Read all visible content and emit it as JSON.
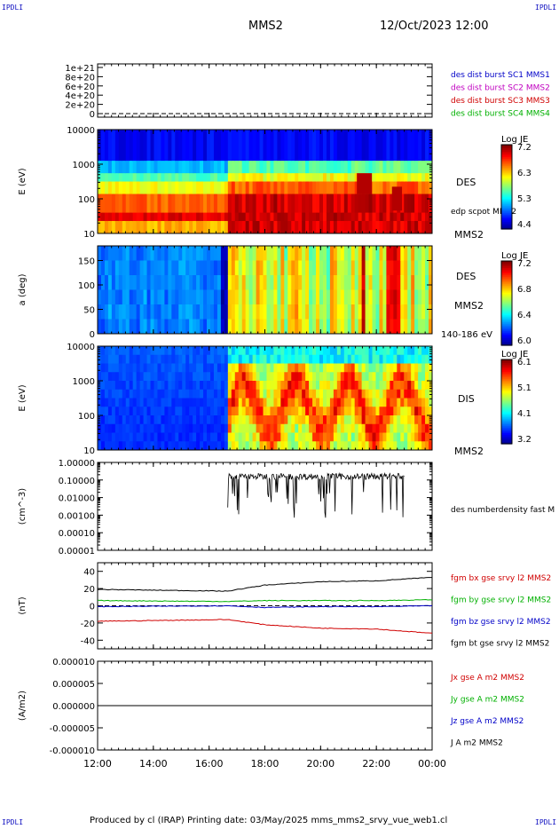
{
  "corner_label": "IPDLI",
  "header": {
    "title": "MMS2",
    "date": "12/Oct/2023 12:00"
  },
  "footer": {
    "text": "Produced by cl (IRAP)   Printing date: 03/May/2025   mms_mms2_srvy_vue_web1.cl"
  },
  "colors": {
    "mms1": "#0000c8",
    "mms2": "#c000c0",
    "mms3": "#d00000",
    "mms4": "#00b000",
    "bx": "#d00000",
    "by": "#00b000",
    "bz": "#0000c8",
    "bt": "#000000"
  },
  "chart_data": [
    {
      "type": "line",
      "name": "panel-dist-burst",
      "yticks": [
        "1e+21",
        "8e+20",
        "6e+20",
        "4e+20",
        "2e+20",
        "0"
      ],
      "ylim": [
        0,
        1.1e+21
      ],
      "zero_line": "dashed",
      "legend": [
        {
          "label": "des dist burst SC1 MMS1",
          "color": "#0000c8"
        },
        {
          "label": "des dist burst SC2 MMS2",
          "color": "#c000c0"
        },
        {
          "label": "des dist burst SC3 MMS3",
          "color": "#d00000"
        },
        {
          "label": "des dist burst SC4 MMS4",
          "color": "#00b000"
        }
      ]
    },
    {
      "type": "heatmap",
      "name": "panel-des-energy",
      "ylabel": "E (eV)",
      "yscale": "log",
      "yticks": [
        "10000",
        "1000",
        "100",
        "10"
      ],
      "instrument": "DES",
      "sub_label": "edp scpot MMS2",
      "bottom_label": "MMS2",
      "colorbar": {
        "title": "Log JE",
        "ticks": [
          "7.2",
          "6.3",
          "5.3",
          "4.4"
        ],
        "range": [
          4.4,
          7.2
        ]
      }
    },
    {
      "type": "heatmap",
      "name": "panel-des-pitch",
      "ylabel": "a (deg)",
      "yticks": [
        "150",
        "100",
        "50",
        "0"
      ],
      "ylim": [
        0,
        180
      ],
      "instrument": "DES",
      "mid_label": "MMS2",
      "bottom_label": "140-186 eV",
      "colorbar": {
        "title": "Log JE",
        "ticks": [
          "7.2",
          "6.8",
          "6.4",
          "6.0"
        ],
        "range": [
          6.0,
          7.2
        ]
      }
    },
    {
      "type": "heatmap",
      "name": "panel-dis-energy",
      "ylabel": "E (eV)",
      "yscale": "log",
      "yticks": [
        "10000",
        "1000",
        "100",
        "10"
      ],
      "instrument": "DIS",
      "bottom_label": "MMS2",
      "colorbar": {
        "title": "Log JE",
        "ticks": [
          "6.1",
          "5.1",
          "4.1",
          "3.2"
        ],
        "range": [
          3.2,
          6.1
        ]
      }
    },
    {
      "type": "line",
      "name": "panel-density",
      "ylabel": "(cm^-3)",
      "yscale": "log",
      "yticks": [
        "1.00000",
        "0.10000",
        "0.01000",
        "0.00100",
        "0.00010",
        "0.00001"
      ],
      "ylim": [
        1e-05,
        1.0
      ],
      "legend": [
        {
          "label": "des numberdensity fast M",
          "color": "#000000"
        }
      ],
      "series_time_range": [
        "16:40",
        "23:00"
      ]
    },
    {
      "type": "line",
      "name": "panel-fgm",
      "ylabel": "(nT)",
      "yticks": [
        "40",
        "20",
        "0",
        "-20",
        "-40"
      ],
      "ylim": [
        -50,
        50
      ],
      "zero_line": "dashed",
      "legend": [
        {
          "label": "fgm bx gse srvy l2 MMS2",
          "color": "#d00000"
        },
        {
          "label": "fgm by gse srvy l2 MMS2",
          "color": "#00b000"
        },
        {
          "label": "fgm bz gse srvy l2 MMS2",
          "color": "#0000c8"
        },
        {
          "label": "fgm bt gse srvy l2 MMS2",
          "color": "#000000"
        }
      ],
      "x": [
        "12:00",
        "16:40",
        "18:00",
        "20:00",
        "22:00",
        "00:00"
      ],
      "series": [
        {
          "name": "fgm bt gse srvy l2 MMS2",
          "values": [
            19,
            17,
            24,
            28,
            29,
            33
          ]
        },
        {
          "name": "fgm by gse srvy l2 MMS2",
          "values": [
            6,
            5,
            6,
            6,
            6,
            7
          ]
        },
        {
          "name": "fgm bz gse srvy l2 MMS2",
          "values": [
            -1,
            0,
            -2,
            -1,
            -1,
            0
          ]
        },
        {
          "name": "fgm bx gse srvy l2 MMS2",
          "values": [
            -18,
            -16,
            -22,
            -26,
            -27,
            -32
          ]
        }
      ]
    },
    {
      "type": "line",
      "name": "panel-current",
      "ylabel": "(A/m2)",
      "yticks": [
        "0.000010",
        "0.000005",
        "0.000000",
        "-0.000005",
        "-0.000010"
      ],
      "ylim": [
        -1e-05,
        1e-05
      ],
      "legend": [
        {
          "label": "Jx gse A m2 MMS2",
          "color": "#d00000"
        },
        {
          "label": "Jy gse A m2 MMS2",
          "color": "#00b000"
        },
        {
          "label": "Jz gse A m2 MMS2",
          "color": "#0000c8"
        },
        {
          "label": "J A m2 MMS2",
          "color": "#000000"
        }
      ]
    }
  ],
  "xaxis": {
    "ticks": [
      "12:00",
      "14:00",
      "16:00",
      "18:00",
      "20:00",
      "22:00",
      "00:00"
    ]
  }
}
